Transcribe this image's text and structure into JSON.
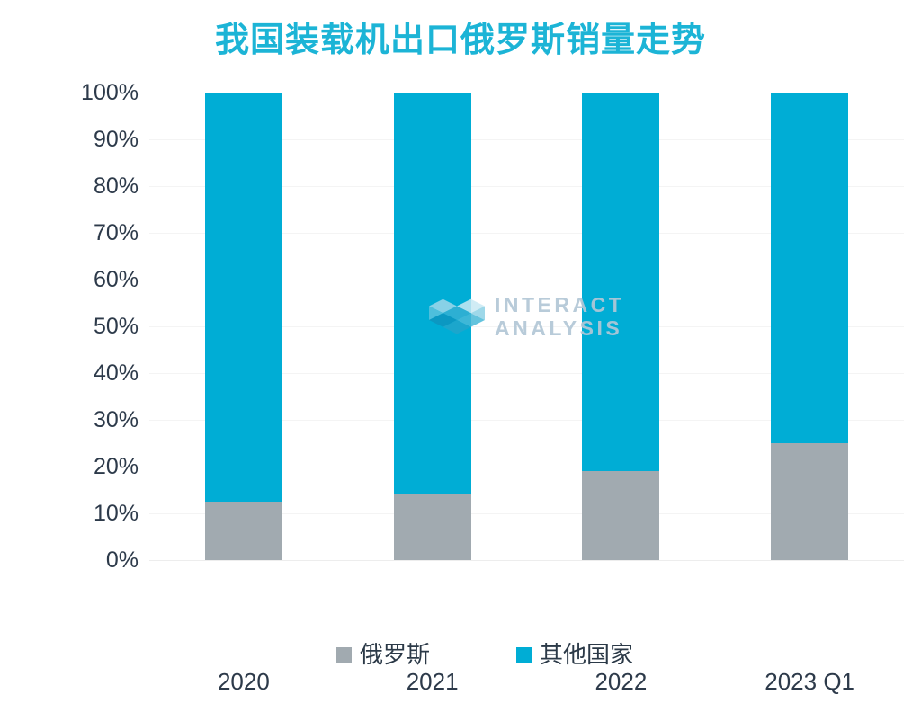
{
  "title": "我国装载机出口俄罗斯销量走势",
  "colors": {
    "title": "#1cb4d6",
    "axis_text": "#2d3a4a",
    "gridline": "#f4f4f4",
    "gridline_top": "#dadada",
    "russia_gray": "#a1aab0",
    "other_cyan": "#00add5",
    "watermark_text": "#bccedb"
  },
  "watermark": {
    "line1": "INTERACT",
    "line2": "ANALYSIS",
    "logo": "interact-analysis-logo"
  },
  "chart_data": {
    "type": "bar",
    "stacked": true,
    "percent": true,
    "title": "我国装载机出口俄罗斯销量走势",
    "categories": [
      "2020",
      "2021",
      "2022",
      "2023 Q1"
    ],
    "series": [
      {
        "name": "俄罗斯",
        "color": "#a1aab0",
        "values": [
          12.5,
          14,
          19,
          25
        ]
      },
      {
        "name": "其他国家",
        "color": "#00add5",
        "values": [
          87.5,
          86,
          81,
          75
        ]
      }
    ],
    "xlabel": "",
    "ylabel": "",
    "ylim": [
      0,
      100
    ],
    "yticks": [
      "0%",
      "10%",
      "20%",
      "30%",
      "40%",
      "50%",
      "60%",
      "70%",
      "80%",
      "90%",
      "100%"
    ],
    "grid": true,
    "legend_position": "bottom"
  }
}
